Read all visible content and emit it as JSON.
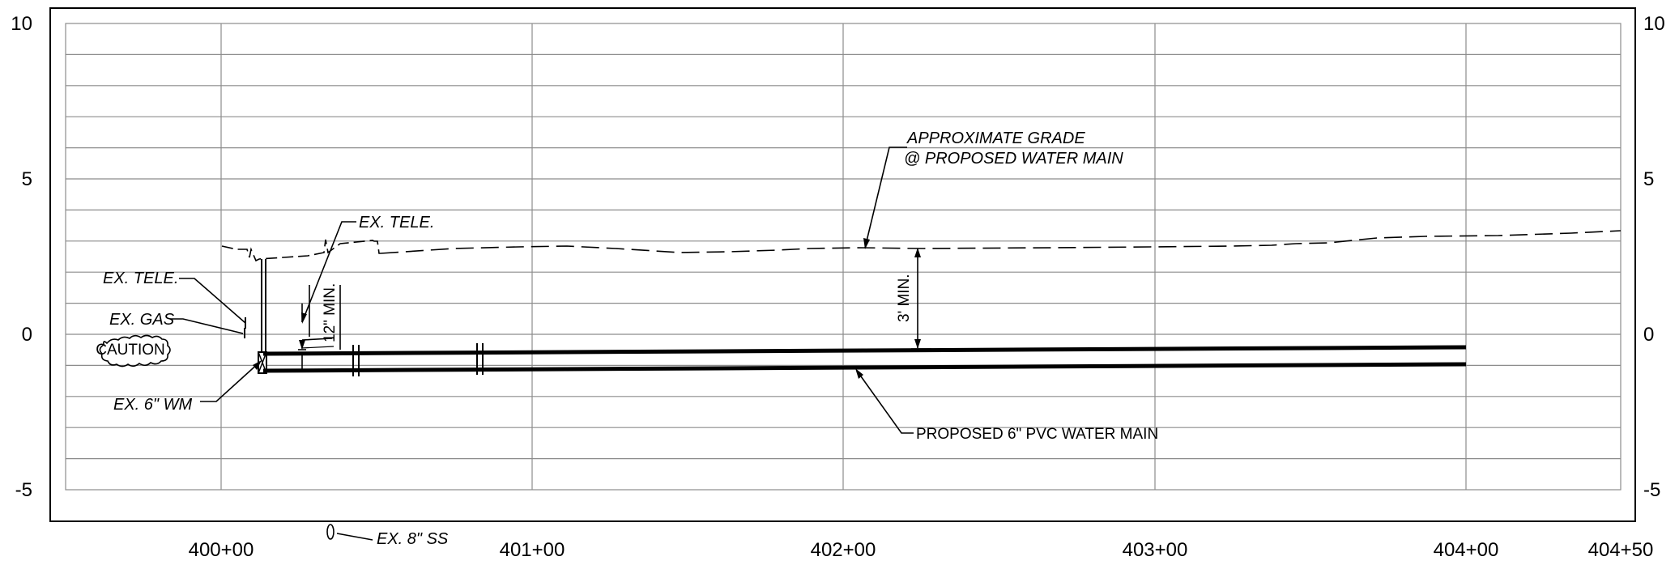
{
  "drawing": {
    "left_axis_ticks": [
      "10",
      "5",
      "0",
      "-5"
    ],
    "right_axis_ticks": [
      "10",
      "5",
      "0",
      "-5"
    ],
    "station_ticks": [
      "400+00",
      "401+00",
      "402+00",
      "403+00",
      "404+00",
      "404+50"
    ]
  },
  "notes": {
    "grade_line1": "APPROXIMATE GRADE",
    "grade_line2": "@ PROPOSED WATER MAIN",
    "tele_top": "EX. TELE.",
    "tele_left": "EX. TELE.",
    "gas": "EX. GAS",
    "caution": "CAUTION",
    "wm": "EX. 6\" WM",
    "ss": "EX. 8\" SS",
    "min12": "12\" MIN.",
    "min3": "3' MIN.",
    "proposed": "PROPOSED 6\" PVC WATER MAIN"
  }
}
